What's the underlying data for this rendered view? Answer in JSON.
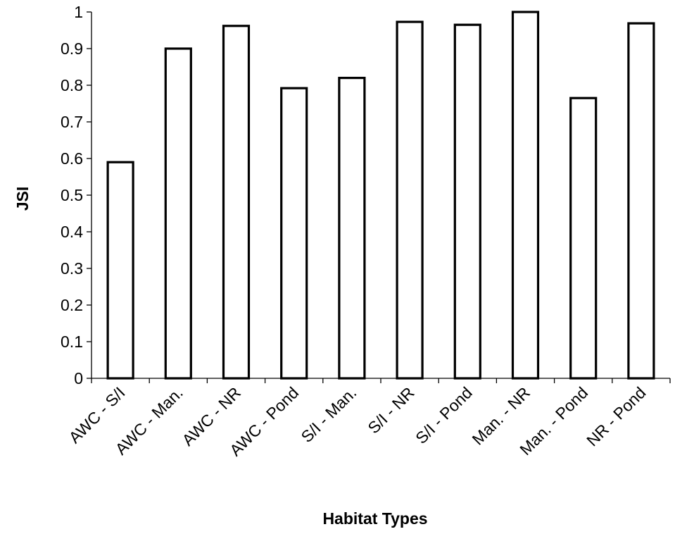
{
  "chart_data": {
    "type": "bar",
    "title": "",
    "xlabel": "Habitat Types",
    "ylabel": "JSI",
    "ylim": [
      0,
      1
    ],
    "yticks": [
      0,
      0.1,
      0.2,
      0.3,
      0.4,
      0.5,
      0.6,
      0.7,
      0.8,
      0.9,
      1
    ],
    "ytick_labels": [
      "0",
      "0.1",
      "0.2",
      "0.3",
      "0.4",
      "0.5",
      "0.6",
      "0.7",
      "0.8",
      "0.9",
      "1"
    ],
    "categories": [
      "AWC - S/I",
      "AWC - Man.",
      "AWC - NR",
      "AWC - Pond",
      "S/I - Man.",
      "S/I - NR",
      "S/I - Pond",
      "Man. - NR",
      "Man. - Pond",
      "NR - Pond"
    ],
    "values": [
      0.59,
      0.9,
      0.962,
      0.792,
      0.82,
      0.973,
      0.965,
      1.0,
      0.765,
      0.969
    ],
    "grid": false,
    "legend": "none",
    "colors": {
      "bar_fill": "#ffffff",
      "bar_stroke": "#000000"
    }
  }
}
